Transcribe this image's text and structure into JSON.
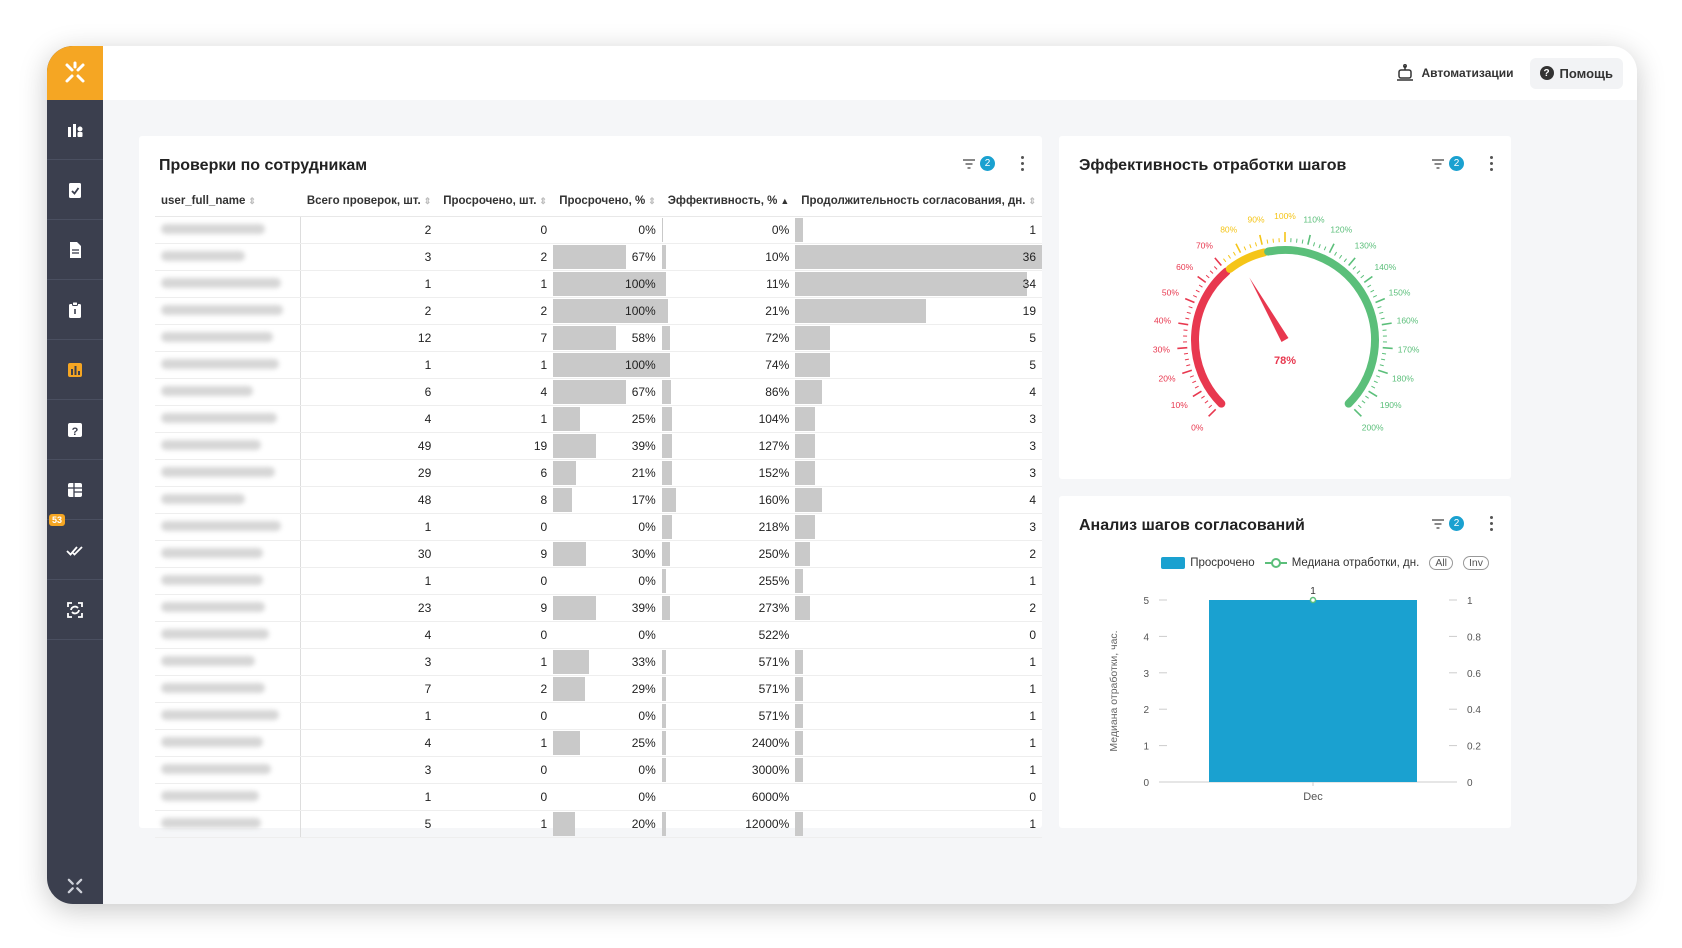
{
  "header": {
    "automations": "Автоматизации",
    "help": "Помощь"
  },
  "sidebar": {
    "badge": "53",
    "icons": [
      "users-bars-icon",
      "clipboard-check-icon",
      "document-icon",
      "clipboard-icon",
      "bar-chart-icon",
      "question-icon",
      "table-icon",
      "double-check-icon",
      "expand-icon"
    ]
  },
  "table_panel": {
    "title": "Проверки по сотрудникам",
    "filter_count": "2",
    "columns": [
      "user_full_name",
      "Всего проверок, шт.",
      "Просрочено, шт.",
      "Просрочено, %",
      "Эффективность, %",
      "Продолжительность согласования, дн."
    ],
    "sort_ascending_column": "Эффективность, %",
    "rows": [
      {
        "total": "2",
        "overdue": "0",
        "overdue_pct": "0%",
        "eff": "0%",
        "dur": "1",
        "op": 0,
        "ef": 0.01,
        "du": 0.03
      },
      {
        "total": "3",
        "overdue": "2",
        "overdue_pct": "67%",
        "eff": "10%",
        "dur": "36",
        "op": 0.67,
        "ef": 0.03,
        "du": 1.0
      },
      {
        "total": "1",
        "overdue": "1",
        "overdue_pct": "100%",
        "eff": "11%",
        "dur": "34",
        "op": 1.0,
        "ef": 0.03,
        "du": 0.94
      },
      {
        "total": "2",
        "overdue": "2",
        "overdue_pct": "100%",
        "eff": "21%",
        "dur": "19",
        "op": 1.0,
        "ef": 0.05,
        "du": 0.53
      },
      {
        "total": "12",
        "overdue": "7",
        "overdue_pct": "58%",
        "eff": "72%",
        "dur": "5",
        "op": 0.58,
        "ef": 0.06,
        "du": 0.14
      },
      {
        "total": "1",
        "overdue": "1",
        "overdue_pct": "100%",
        "eff": "74%",
        "dur": "5",
        "op": 1.0,
        "ef": 0.06,
        "du": 0.14
      },
      {
        "total": "6",
        "overdue": "4",
        "overdue_pct": "67%",
        "eff": "86%",
        "dur": "4",
        "op": 0.67,
        "ef": 0.07,
        "du": 0.11
      },
      {
        "total": "4",
        "overdue": "1",
        "overdue_pct": "25%",
        "eff": "104%",
        "dur": "3",
        "op": 0.25,
        "ef": 0.08,
        "du": 0.08
      },
      {
        "total": "49",
        "overdue": "19",
        "overdue_pct": "39%",
        "eff": "127%",
        "dur": "3",
        "op": 0.39,
        "ef": 0.08,
        "du": 0.08
      },
      {
        "total": "29",
        "overdue": "6",
        "overdue_pct": "21%",
        "eff": "152%",
        "dur": "3",
        "op": 0.21,
        "ef": 0.08,
        "du": 0.08
      },
      {
        "total": "48",
        "overdue": "8",
        "overdue_pct": "17%",
        "eff": "160%",
        "dur": "4",
        "op": 0.17,
        "ef": 0.11,
        "du": 0.11
      },
      {
        "total": "1",
        "overdue": "0",
        "overdue_pct": "0%",
        "eff": "218%",
        "dur": "3",
        "op": 0,
        "ef": 0.08,
        "du": 0.08
      },
      {
        "total": "30",
        "overdue": "9",
        "overdue_pct": "30%",
        "eff": "250%",
        "dur": "2",
        "op": 0.3,
        "ef": 0.06,
        "du": 0.06
      },
      {
        "total": "1",
        "overdue": "0",
        "overdue_pct": "0%",
        "eff": "255%",
        "dur": "1",
        "op": 0,
        "ef": 0.03,
        "du": 0.03
      },
      {
        "total": "23",
        "overdue": "9",
        "overdue_pct": "39%",
        "eff": "273%",
        "dur": "2",
        "op": 0.39,
        "ef": 0.06,
        "du": 0.06
      },
      {
        "total": "4",
        "overdue": "0",
        "overdue_pct": "0%",
        "eff": "522%",
        "dur": "0",
        "op": 0,
        "ef": 0,
        "du": 0
      },
      {
        "total": "3",
        "overdue": "1",
        "overdue_pct": "33%",
        "eff": "571%",
        "dur": "1",
        "op": 0.33,
        "ef": 0.03,
        "du": 0.03
      },
      {
        "total": "7",
        "overdue": "2",
        "overdue_pct": "29%",
        "eff": "571%",
        "dur": "1",
        "op": 0.29,
        "ef": 0.03,
        "du": 0.03
      },
      {
        "total": "1",
        "overdue": "0",
        "overdue_pct": "0%",
        "eff": "571%",
        "dur": "1",
        "op": 0,
        "ef": 0.03,
        "du": 0.03
      },
      {
        "total": "4",
        "overdue": "1",
        "overdue_pct": "25%",
        "eff": "2400%",
        "dur": "1",
        "op": 0.25,
        "ef": 0.03,
        "du": 0.03
      },
      {
        "total": "3",
        "overdue": "0",
        "overdue_pct": "0%",
        "eff": "3000%",
        "dur": "1",
        "op": 0,
        "ef": 0.03,
        "du": 0.03
      },
      {
        "total": "1",
        "overdue": "0",
        "overdue_pct": "0%",
        "eff": "6000%",
        "dur": "0",
        "op": 0,
        "ef": 0,
        "du": 0
      },
      {
        "total": "5",
        "overdue": "1",
        "overdue_pct": "20%",
        "eff": "12000%",
        "dur": "1",
        "op": 0.2,
        "ef": 0.03,
        "du": 0.03
      }
    ]
  },
  "gauge_panel": {
    "title": "Эффективность отработки шагов",
    "filter_count": "2",
    "value_label": "78%",
    "value": 78,
    "min": 0,
    "max": 200,
    "tick_labels": [
      "0%",
      "10%",
      "20%",
      "30%",
      "40%",
      "50%",
      "60%",
      "70%",
      "80%",
      "90%",
      "100%",
      "110%",
      "120%",
      "130%",
      "140%",
      "150%",
      "160%",
      "170%",
      "180%",
      "190%",
      "200%"
    ],
    "colors": {
      "red": "#e8384f",
      "yellow": "#f5c518",
      "green": "#5bbf7a"
    }
  },
  "chart_panel": {
    "title": "Анализ шагов согласований",
    "filter_count": "2",
    "legend_overdue": "Просрочено",
    "legend_median": "Медиана отработки, дн.",
    "btn_all": "All",
    "btn_inv": "Inv"
  },
  "chart_data": {
    "type": "bar",
    "categories": [
      "Dec"
    ],
    "series": [
      {
        "name": "Просрочено",
        "values": [
          5
        ],
        "axis": "left",
        "color": "#1aa1d0"
      },
      {
        "name": "Медиана отработки, дн.",
        "values": [
          1
        ],
        "axis": "right",
        "type": "line",
        "color": "#5bbf7a"
      }
    ],
    "data_labels": [
      "1"
    ],
    "ylabel": "Медиана отработки, час.",
    "ylim": [
      0,
      5
    ],
    "y_ticks": [
      "0",
      "1",
      "2",
      "3",
      "4",
      "5"
    ],
    "y2lim": [
      0,
      1
    ],
    "y2_ticks": [
      "0",
      "0.2",
      "0.4",
      "0.6",
      "0.8",
      "1"
    ]
  }
}
